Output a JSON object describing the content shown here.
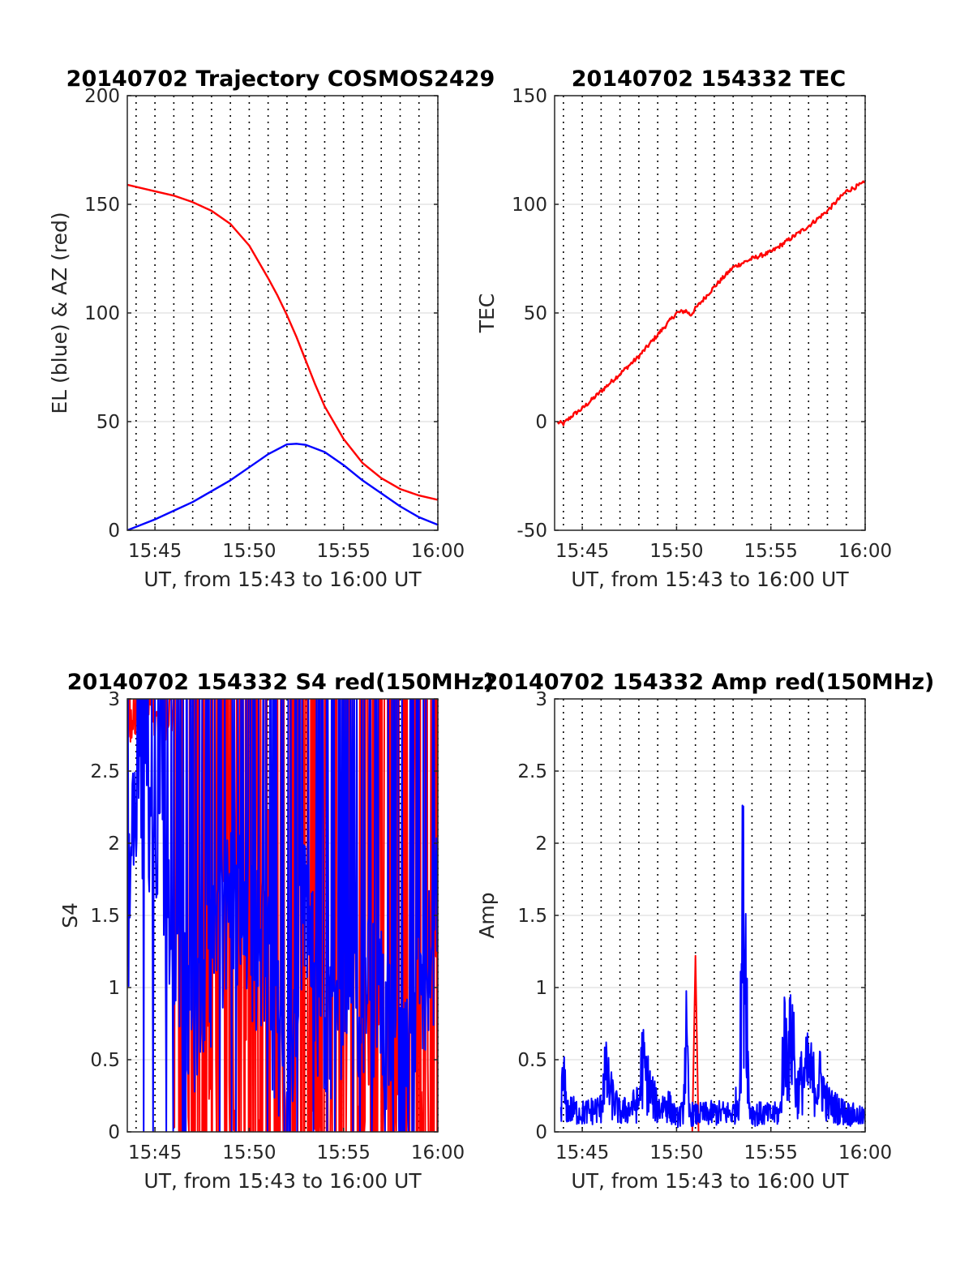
{
  "chart_data": [
    {
      "type": "line",
      "title": "20140702 Trajectory COSMOS2429",
      "xlabel": "UT, from 15:43 to 16:00 UT",
      "ylabel": "EL (blue) & AZ (red)",
      "xlim": [
        "15:43:32",
        "16:00:00"
      ],
      "ylim": [
        0,
        200
      ],
      "xticks": [
        "15:45",
        "15:50",
        "15:55",
        "16:00"
      ],
      "yticks": [
        0,
        50,
        100,
        150,
        200
      ],
      "grid": true,
      "series": [
        {
          "color": "#ff0000",
          "x": [
            "15:43:32",
            "15:45:00",
            "15:46:00",
            "15:47:00",
            "15:48:00",
            "15:49:00",
            "15:50:00",
            "15:51:00",
            "15:51:30",
            "15:52:00",
            "15:52:30",
            "15:53:00",
            "15:53:30",
            "15:54:00",
            "15:55:00",
            "15:56:00",
            "15:57:00",
            "15:58:00",
            "15:59:00",
            "16:00:00"
          ],
          "y": [
            159,
            156,
            154,
            151,
            147,
            141,
            131,
            116,
            108,
            99,
            89,
            78,
            67,
            57,
            42,
            31,
            24,
            19,
            16,
            14
          ]
        },
        {
          "color": "#0000ff",
          "x": [
            "15:43:32",
            "15:45:00",
            "15:46:00",
            "15:47:00",
            "15:48:00",
            "15:49:00",
            "15:50:00",
            "15:51:00",
            "15:52:00",
            "15:52:30",
            "15:53:00",
            "15:54:00",
            "15:55:00",
            "15:56:00",
            "15:57:00",
            "15:58:00",
            "15:59:00",
            "16:00:00"
          ],
          "y": [
            0,
            5,
            9,
            13,
            18,
            23,
            29,
            35,
            39.5,
            39.8,
            39.3,
            36,
            30,
            23,
            17,
            11,
            6,
            2.5
          ]
        }
      ]
    },
    {
      "type": "line",
      "title": "20140702 154332 TEC",
      "xlabel": "UT, from 15:43 to 16:00 UT",
      "ylabel": "TEC",
      "xlim": [
        "15:43:32",
        "16:00:00"
      ],
      "ylim": [
        -50,
        150
      ],
      "xticks": [
        "15:45",
        "15:50",
        "15:55",
        "16:00"
      ],
      "yticks": [
        -50,
        0,
        50,
        100,
        150
      ],
      "grid": true,
      "series": [
        {
          "color": "#ff0000",
          "x": [
            "15:43:32",
            "15:44:00",
            "15:44:30",
            "15:45:00",
            "15:46:00",
            "15:47:00",
            "15:48:00",
            "15:49:00",
            "15:50:00",
            "15:50:30",
            "15:50:45",
            "15:51:00",
            "15:52:00",
            "15:53:00",
            "15:54:00",
            "15:55:00",
            "15:56:00",
            "15:57:00",
            "15:58:00",
            "15:59:00",
            "16:00:00"
          ],
          "y": [
            0,
            -1,
            3,
            6,
            14,
            22,
            30,
            40,
            50,
            51,
            49,
            52,
            62,
            71,
            75,
            78,
            84,
            90,
            97,
            106,
            110
          ]
        }
      ]
    },
    {
      "type": "line",
      "title": "20140702 154332 S4 red(150MHz)",
      "xlabel": "UT, from 15:43 to 16:00 UT",
      "ylabel": "S4",
      "xlim": [
        "15:43:32",
        "16:00:00"
      ],
      "ylim": [
        0,
        3
      ],
      "xticks": [
        "15:45",
        "15:50",
        "15:55",
        "16:00"
      ],
      "yticks": [
        0,
        0.5,
        1,
        1.5,
        2,
        2.5,
        3
      ],
      "grid": true,
      "series": [
        {
          "color": "#ff0000",
          "x": [
            "15:43:32",
            "15:45:00",
            "15:46:00",
            "15:46:30",
            "15:47:00",
            "15:47:30",
            "15:48:00",
            "15:48:30",
            "15:49:00",
            "15:49:30",
            "15:50:00",
            "15:51:00",
            "15:52:00",
            "15:53:00",
            "15:54:00",
            "15:55:00",
            "15:56:00",
            "15:57:00",
            "15:58:00",
            "15:59:00",
            "16:00:00"
          ],
          "y": [
            3,
            3,
            0,
            3,
            0,
            3,
            0,
            3,
            0,
            3,
            0,
            3,
            0,
            3,
            0,
            3,
            0,
            3,
            0,
            3,
            1.8
          ]
        },
        {
          "color": "#0000ff",
          "x": [
            "15:43:32",
            "15:44:00",
            "15:45:00",
            "15:46:00",
            "15:47:00",
            "15:48:00",
            "15:49:00",
            "15:50:00",
            "15:51:00",
            "15:52:00",
            "15:53:00",
            "15:54:00",
            "15:55:00",
            "15:56:00",
            "15:57:00",
            "15:58:00",
            "15:59:00",
            "16:00:00"
          ],
          "y": [
            1.5,
            2.2,
            1.8,
            1.5,
            0.8,
            1.2,
            1.6,
            1.4,
            1.1,
            0.2,
            1.6,
            0.6,
            1.0,
            0.9,
            0.9,
            0.3,
            0.8,
            1.5
          ]
        }
      ]
    },
    {
      "type": "line",
      "title": "20140702 154332 Amp red(150MHz)",
      "xlabel": "UT, from 15:43 to 16:00 UT",
      "ylabel": "Amp",
      "xlim": [
        "15:43:32",
        "16:00:00"
      ],
      "ylim": [
        0,
        3
      ],
      "xticks": [
        "15:45",
        "15:50",
        "15:55",
        "16:00"
      ],
      "yticks": [
        0,
        0.5,
        1,
        1.5,
        2,
        2.5,
        3
      ],
      "grid": true,
      "series": [
        {
          "color": "#ff0000",
          "x": [
            "15:50:50",
            "15:51:00",
            "15:51:10"
          ],
          "y": [
            0,
            1.22,
            0
          ]
        },
        {
          "color": "#0000ff",
          "x": [
            "15:43:32",
            "15:43:50",
            "15:44:00",
            "15:44:10",
            "15:45:00",
            "15:46:00",
            "15:46:10",
            "15:46:30",
            "15:47:00",
            "15:47:30",
            "15:48:00",
            "15:48:10",
            "15:48:40",
            "15:49:00",
            "15:49:30",
            "15:50:00",
            "15:50:20",
            "15:50:30",
            "15:50:40",
            "15:51:00",
            "15:52:00",
            "15:53:00",
            "15:53:20",
            "15:53:30",
            "15:53:40",
            "15:53:50",
            "15:54:00",
            "15:55:00",
            "15:55:30",
            "15:55:40",
            "15:56:00",
            "15:56:10",
            "15:56:20",
            "15:56:40",
            "15:57:00",
            "15:57:20",
            "15:57:40",
            "15:58:00",
            "15:59:00",
            "16:00:00"
          ],
          "y": [
            0.15,
            0.2,
            0.58,
            0.25,
            0.2,
            0.25,
            0.65,
            0.4,
            0.2,
            0.25,
            0.3,
            0.72,
            0.4,
            0.25,
            0.3,
            0.15,
            0.2,
            1.0,
            0.2,
            0.18,
            0.2,
            0.2,
            0.4,
            2.25,
            2.0,
            0.3,
            0.2,
            0.18,
            0.2,
            0.95,
            0.85,
            1.12,
            0.4,
            0.55,
            0.65,
            0.5,
            0.55,
            0.3,
            0.2,
            0.15
          ]
        }
      ]
    }
  ]
}
